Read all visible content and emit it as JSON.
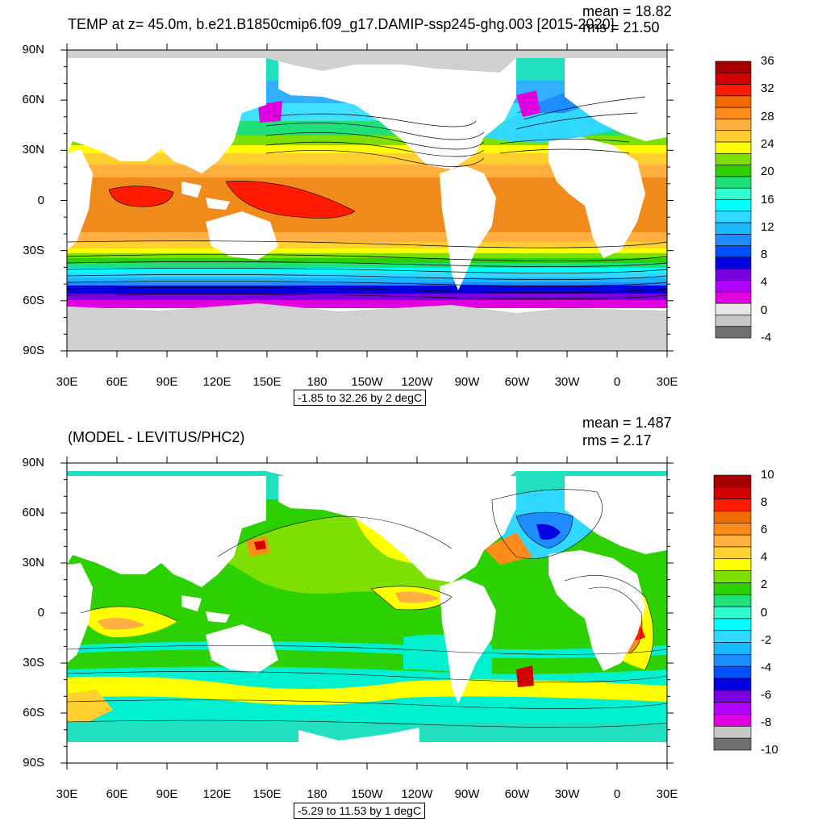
{
  "panel1": {
    "title": "TEMP at z=  45.0m, b.e21.B1850cmip6.f09_g17.DAMIP-ssp245-ghg.003 [2015-2020]",
    "mean": "mean = 18.82",
    "rms": "rms = 21.50",
    "range": "-1.85 to 32.26 by 2 degC",
    "cb_labels": [
      "36",
      "32",
      "28",
      "24",
      "20",
      "16",
      "12",
      "8",
      "4",
      "0",
      "-4"
    ],
    "cb_colors": [
      "#a50000",
      "#d40000",
      "#ff1a00",
      "#f06a00",
      "#ff8c1a",
      "#ffb040",
      "#ffd030",
      "#ffff00",
      "#7de000",
      "#2dd000",
      "#20e07a",
      "#30ffd0",
      "#00ffff",
      "#30d8ff",
      "#18b8ff",
      "#1e8cff",
      "#0050ff",
      "#0000e0",
      "#7a00e0",
      "#b000ff",
      "#e000e0",
      "#e8e8e8",
      "#c8c8c8",
      "#707070"
    ]
  },
  "panel2": {
    "title": "(MODEL - LEVITUS/PHC2)",
    "mean": "mean = 1.487",
    "rms": "rms = 2.17",
    "range": "-5.29 to 11.53 by 1 degC",
    "cb_labels": [
      "10",
      "8",
      "6",
      "4",
      "2",
      "0",
      "-2",
      "-4",
      "-6",
      "-8",
      "-10"
    ],
    "cb_colors": [
      "#a50000",
      "#d40000",
      "#ff1a00",
      "#f06a00",
      "#ff8c1a",
      "#ffb040",
      "#ffd030",
      "#ffff00",
      "#7de000",
      "#2dd000",
      "#20e07a",
      "#30ffd0",
      "#00ffff",
      "#30d8ff",
      "#18b8ff",
      "#1e8cff",
      "#0050ff",
      "#0000e0",
      "#7a00e0",
      "#b000ff",
      "#e000e0",
      "#c8c8c8",
      "#707070"
    ]
  },
  "lat_labels": [
    "90N",
    "60N",
    "30N",
    "0",
    "30S",
    "60S",
    "90S"
  ],
  "lon_labels": [
    "30E",
    "60E",
    "90E",
    "120E",
    "150E",
    "180",
    "150W",
    "120W",
    "90W",
    "60W",
    "30W",
    "0",
    "30E"
  ],
  "colors": {
    "land": "#ffffff",
    "ice": "#d0d0d0"
  }
}
